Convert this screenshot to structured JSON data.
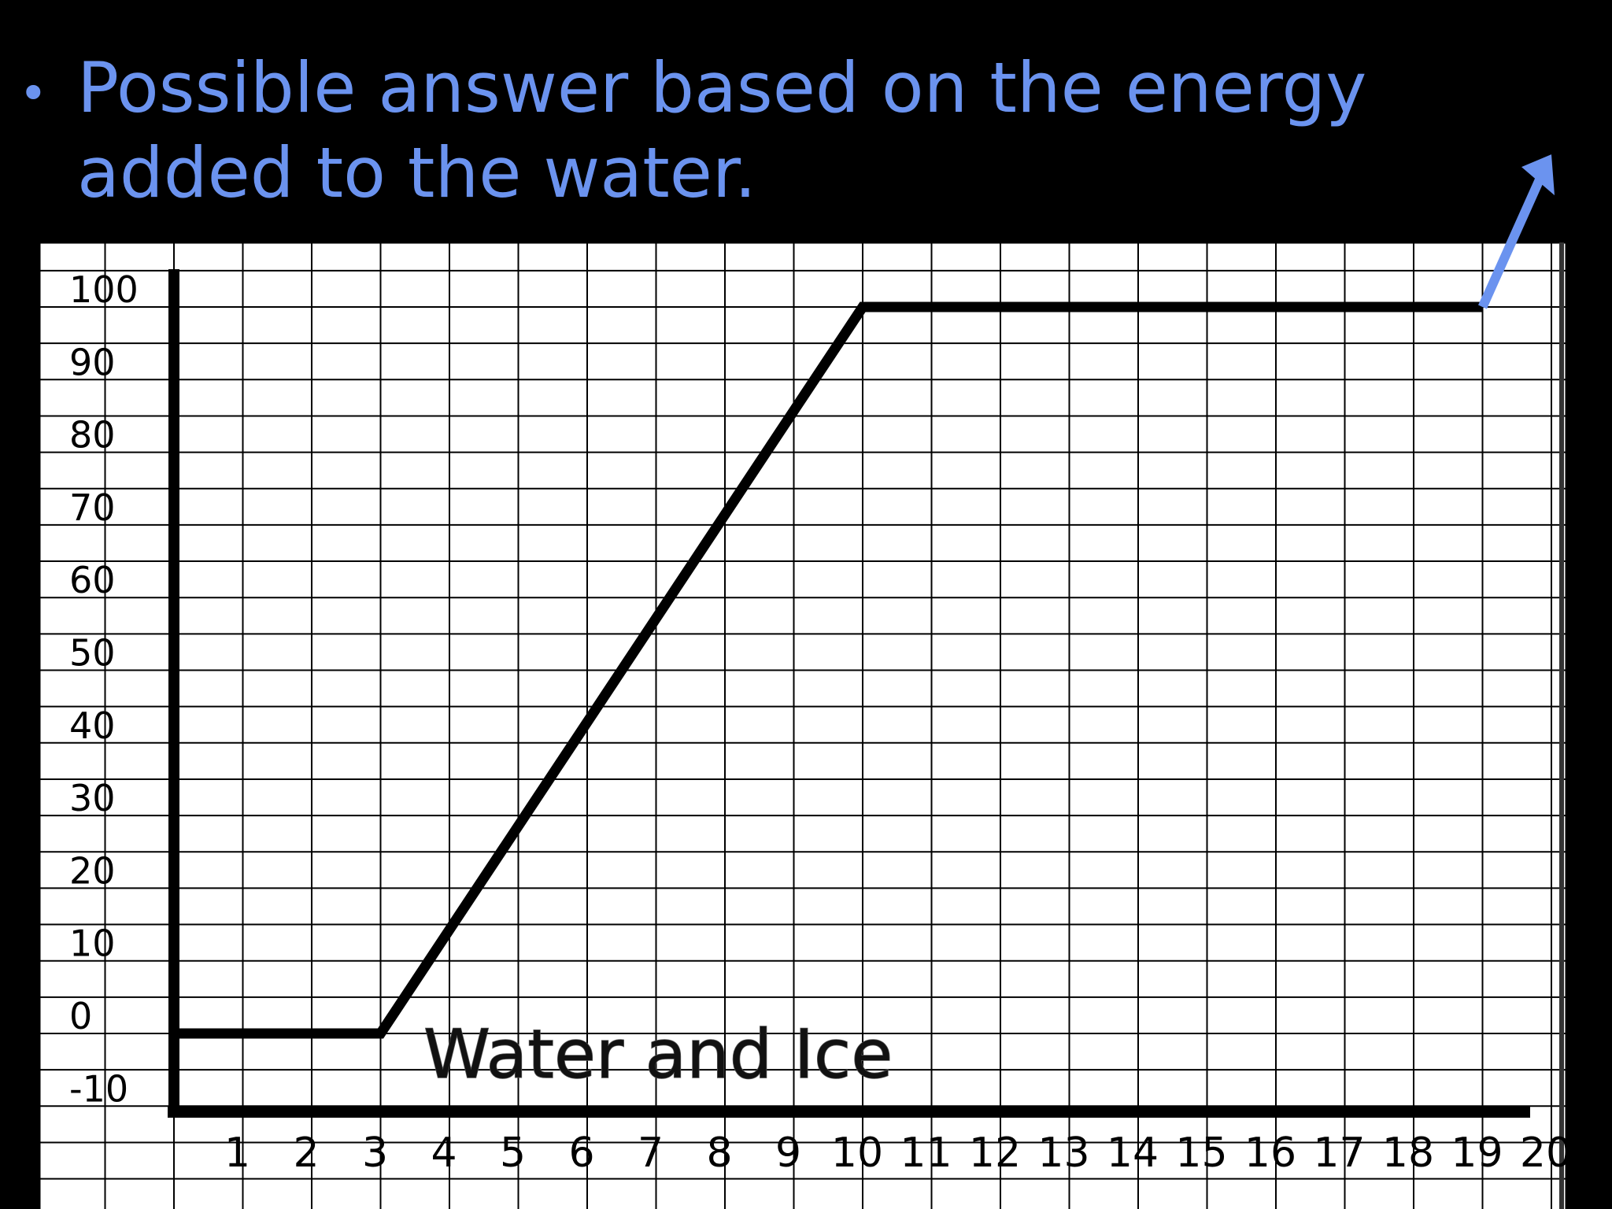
{
  "slide": {
    "bullet": "•",
    "title": "Possible answer based on the energy added to the water."
  },
  "colors": {
    "background": "#000000",
    "title": "#6b93ef",
    "arrow": "#6b93ef",
    "grid_paper": "#ffffff",
    "grid_lines": "#000000",
    "curve": "#000000"
  },
  "chart_data": {
    "type": "line",
    "title": "",
    "xlabel": "",
    "ylabel": "",
    "xlim": [
      0,
      20
    ],
    "ylim": [
      -10,
      100
    ],
    "grid": true,
    "x_ticks": [
      "1",
      "2",
      "3",
      "4",
      "5",
      "6",
      "7",
      "8",
      "9",
      "10",
      "11",
      "12",
      "13",
      "14",
      "15",
      "16",
      "17",
      "18",
      "19",
      "20"
    ],
    "y_ticks": [
      "100",
      "90",
      "80",
      "70",
      "60",
      "50",
      "40",
      "30",
      "20",
      "10",
      "0",
      "-10"
    ],
    "series": [
      {
        "x": [
          0,
          3,
          10,
          19
        ],
        "y": [
          0,
          0,
          100,
          100
        ]
      }
    ],
    "annotations": [
      {
        "text": "Water and Ice",
        "x": 3.6,
        "y": -5
      }
    ],
    "arrow": {
      "from": [
        19,
        100
      ],
      "to": [
        20,
        121
      ],
      "icon": "up-right-arrow-icon"
    }
  }
}
